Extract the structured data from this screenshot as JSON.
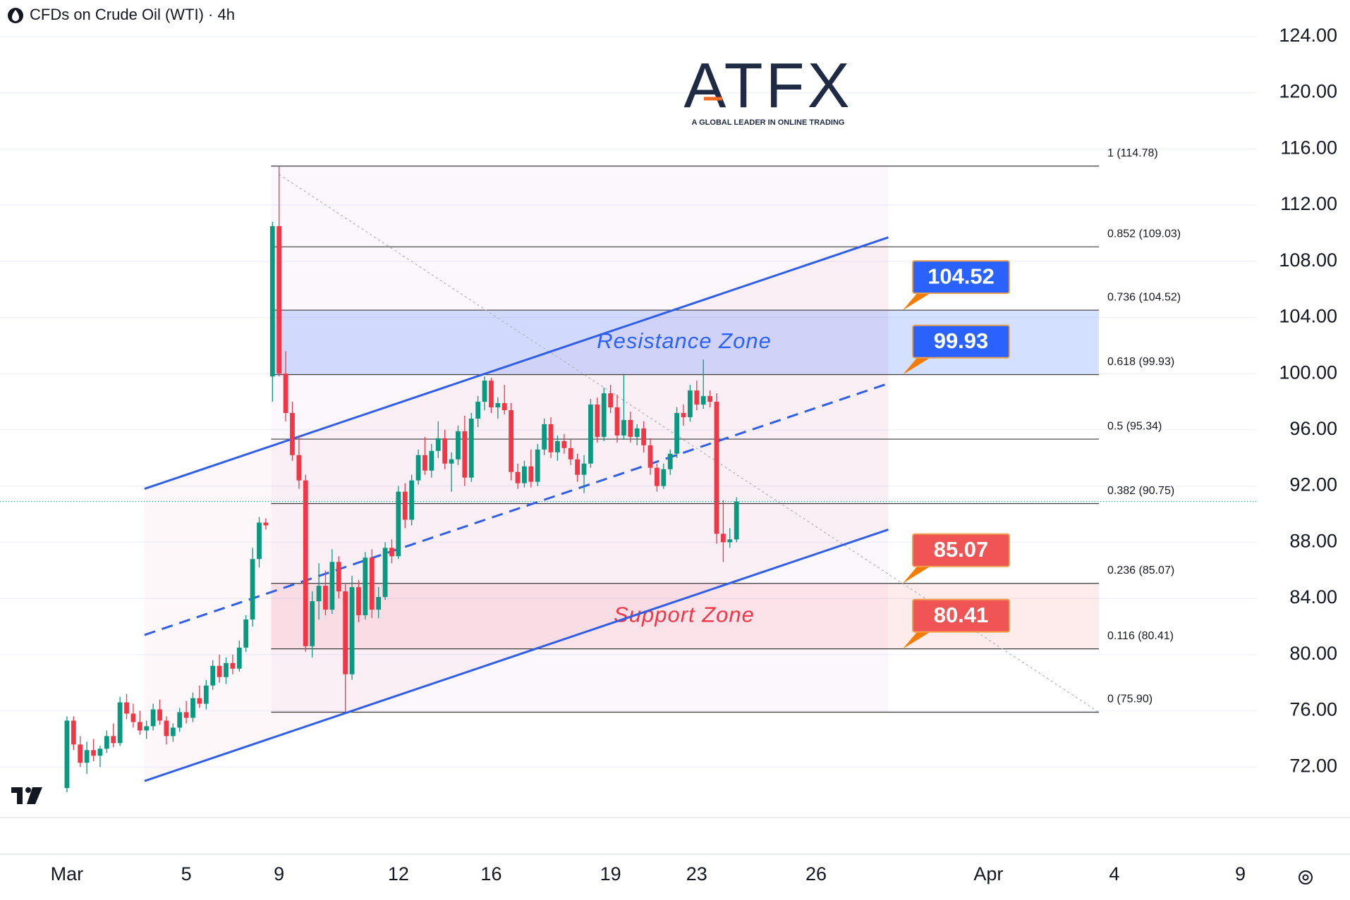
{
  "header": {
    "title": "CFDs on Crude Oil (WTI) · 4h"
  },
  "logo": {
    "brand": "ATFX",
    "tagline": "A GLOBAL LEADER IN ONLINE TRADING"
  },
  "chart_data": {
    "type": "candlestick",
    "up_color": "#089981",
    "down_color": "#f23645",
    "open": [
      70.5,
      75.3,
      73.6,
      72.3,
      73.2,
      72.8,
      73.3,
      74.2,
      73.7,
      76.6,
      75.8,
      75.2,
      74.6,
      74.9,
      76.1,
      75.3,
      74.2,
      74.8,
      75.9,
      75.5,
      76.9,
      76.5,
      77.8,
      79.2,
      78.4,
      79.4,
      79.0,
      80.5,
      82.5,
      86.8,
      89.4,
      99.8,
      110.5,
      100.0,
      97.2,
      94.2,
      92.4,
      80.6,
      83.8,
      84.9,
      83.2,
      86.6,
      84.5,
      78.6,
      84.8,
      82.8,
      86.9,
      83.2,
      84.1,
      87.6,
      87.0,
      91.6,
      89.6,
      92.4,
      94.2,
      93.1,
      94.5,
      95.4,
      93.6,
      93.9,
      95.9,
      92.6,
      96.8,
      98.0,
      99.5,
      97.6,
      97.9,
      97.4,
      93.0,
      92.2,
      93.4,
      92.3,
      94.6,
      96.4,
      94.4,
      95.2,
      94.7,
      93.9,
      92.8,
      93.6,
      97.8,
      95.5,
      98.6,
      97.6,
      95.6,
      96.7,
      95.5,
      96.1,
      94.9,
      93.3,
      92.0,
      93.2,
      94.3,
      97.2,
      96.9,
      98.8,
      97.8,
      98.4,
      98.0,
      88.6,
      88.0,
      88.2
    ],
    "high": [
      75.6,
      75.6,
      74.2,
      73.8,
      74.0,
      73.5,
      74.6,
      75.1,
      77.0,
      77.2,
      76.5,
      76.0,
      75.3,
      76.5,
      76.8,
      75.6,
      75.1,
      76.2,
      76.7,
      77.3,
      77.8,
      78.2,
      79.6,
      80.0,
      79.8,
      80.0,
      81.0,
      82.8,
      87.6,
      89.8,
      89.7,
      110.8,
      114.78,
      101.6,
      98.0,
      95.6,
      92.8,
      84.5,
      86.5,
      86.0,
      87.5,
      87.0,
      85.0,
      85.6,
      85.3,
      87.3,
      87.5,
      84.8,
      88.0,
      88.2,
      92.0,
      92.2,
      92.8,
      94.6,
      95.5,
      95.0,
      96.6,
      96.0,
      94.4,
      96.3,
      97.0,
      97.2,
      98.4,
      99.8,
      99.7,
      98.3,
      99.2,
      97.9,
      93.6,
      93.8,
      94.6,
      95.0,
      96.8,
      96.9,
      95.6,
      95.7,
      95.3,
      94.3,
      94.2,
      98.2,
      98.3,
      99.0,
      99.2,
      98.5,
      99.9,
      97.3,
      96.4,
      96.6,
      95.4,
      93.6,
      93.6,
      94.6,
      97.6,
      97.8,
      99.2,
      99.5,
      101.0,
      98.8,
      98.6,
      91.0,
      89.0,
      91.2
    ],
    "low": [
      70.2,
      73.2,
      72.0,
      71.5,
      72.4,
      72.0,
      73.0,
      73.4,
      73.5,
      75.4,
      74.8,
      74.3,
      74.0,
      74.6,
      75.0,
      73.6,
      73.8,
      74.5,
      75.1,
      75.2,
      76.2,
      76.1,
      77.5,
      78.0,
      77.9,
      78.6,
      78.8,
      80.2,
      82.0,
      86.2,
      88.9,
      98.0,
      99.8,
      96.6,
      93.8,
      91.8,
      80.2,
      79.8,
      82.5,
      82.8,
      82.9,
      84.0,
      75.9,
      78.2,
      82.3,
      82.5,
      82.6,
      82.6,
      83.9,
      86.5,
      86.8,
      89.0,
      89.2,
      92.1,
      92.8,
      92.6,
      94.0,
      93.2,
      91.6,
      93.5,
      92.0,
      92.3,
      96.2,
      97.4,
      97.2,
      96.8,
      97.1,
      92.4,
      91.8,
      91.9,
      91.9,
      92.0,
      94.2,
      94.0,
      93.8,
      94.3,
      93.5,
      92.3,
      91.5,
      93.3,
      95.1,
      95.2,
      97.2,
      95.1,
      95.3,
      95.1,
      94.9,
      94.4,
      92.8,
      91.6,
      91.8,
      92.8,
      94.0,
      96.3,
      96.6,
      97.4,
      97.5,
      97.6,
      87.9,
      86.6,
      87.6,
      88.0
    ],
    "close": [
      75.3,
      73.6,
      72.3,
      73.2,
      72.8,
      73.3,
      74.2,
      73.7,
      76.6,
      75.8,
      75.2,
      74.6,
      74.9,
      76.1,
      75.3,
      74.2,
      74.8,
      75.9,
      75.5,
      76.9,
      76.5,
      77.8,
      79.2,
      78.4,
      79.4,
      79.0,
      80.5,
      82.5,
      86.8,
      89.4,
      89.2,
      110.5,
      100.0,
      97.2,
      94.2,
      92.4,
      80.6,
      83.8,
      84.9,
      83.2,
      86.6,
      84.5,
      78.6,
      84.8,
      82.8,
      86.9,
      83.2,
      84.1,
      87.6,
      87.0,
      91.6,
      89.6,
      92.4,
      94.2,
      93.1,
      94.5,
      95.4,
      93.6,
      93.9,
      95.9,
      92.6,
      96.8,
      98.0,
      99.5,
      97.6,
      97.9,
      97.4,
      93.0,
      92.2,
      93.4,
      92.3,
      94.6,
      96.4,
      94.4,
      95.2,
      94.7,
      93.9,
      92.8,
      93.6,
      97.8,
      95.5,
      98.6,
      97.6,
      95.6,
      96.7,
      95.5,
      96.1,
      94.9,
      93.3,
      92.0,
      93.2,
      94.3,
      97.2,
      96.9,
      98.8,
      97.8,
      98.4,
      98.0,
      88.6,
      88.0,
      88.2,
      90.9
    ],
    "xlim": [
      -10.1,
      179.5
    ],
    "xticks": [
      {
        "value": 0,
        "label": "Mar"
      },
      {
        "value": 18,
        "label": "5"
      },
      {
        "value": 32,
        "label": "9"
      },
      {
        "value": 50,
        "label": "12"
      },
      {
        "value": 64,
        "label": "16"
      },
      {
        "value": 82,
        "label": "19"
      },
      {
        "value": 95,
        "label": "23"
      },
      {
        "value": 113,
        "label": "26"
      },
      {
        "value": 139,
        "label": "Apr"
      },
      {
        "value": 158,
        "label": "4"
      },
      {
        "value": 177,
        "label": "9"
      }
    ],
    "ylim": [
      68.4,
      126.6
    ],
    "yticks": [
      {
        "value": 72,
        "label": "72.00"
      },
      {
        "value": 76,
        "label": "76.00"
      },
      {
        "value": 80,
        "label": "80.00"
      },
      {
        "value": 84,
        "label": "84.00"
      },
      {
        "value": 88,
        "label": "88.00"
      },
      {
        "value": 92,
        "label": "92.00"
      },
      {
        "value": 96,
        "label": "96.00"
      },
      {
        "value": 100,
        "label": "100.00"
      },
      {
        "value": 104,
        "label": "104.00"
      },
      {
        "value": 108,
        "label": "108.00"
      },
      {
        "value": 112,
        "label": "112.00"
      },
      {
        "value": 116,
        "label": "116.00"
      },
      {
        "value": 120,
        "label": "120.00"
      },
      {
        "value": 124,
        "label": "124.00"
      }
    ],
    "grid": true,
    "fib_levels": [
      {
        "ratio": 1,
        "price": 114.78,
        "label": "1 (114.78)"
      },
      {
        "ratio": 0.852,
        "price": 109.03,
        "label": "0.852 (109.03)"
      },
      {
        "ratio": 0.736,
        "price": 104.52,
        "label": "0.736 (104.52)"
      },
      {
        "ratio": 0.618,
        "price": 99.93,
        "label": "0.618 (99.93)"
      },
      {
        "ratio": 0.5,
        "price": 95.34,
        "label": "0.5 (95.34)"
      },
      {
        "ratio": 0.382,
        "price": 90.75,
        "label": "0.382 (90.75)"
      },
      {
        "ratio": 0.236,
        "price": 85.07,
        "label": "0.236 (85.07)"
      },
      {
        "ratio": 0.116,
        "price": 80.41,
        "label": "0.116 (80.41)"
      },
      {
        "ratio": 0,
        "price": 75.9,
        "label": "0 (75.90)"
      }
    ],
    "zones": [
      {
        "name": "Resistance Zone",
        "from": 99.93,
        "to": 104.52,
        "color": "#2962ff"
      },
      {
        "name": "Support Zone",
        "from": 80.41,
        "to": 85.07,
        "color": "#f23645"
      }
    ],
    "callouts": [
      {
        "value": 104.52,
        "color": "#2962ff"
      },
      {
        "value": 99.93,
        "color": "#2962ff"
      },
      {
        "value": 85.07,
        "color": "#f05454"
      },
      {
        "value": 80.41,
        "color": "#f05454"
      }
    ],
    "channel": {
      "upper": [
        91.8,
        109.7
      ],
      "lower": [
        71.0,
        88.9
      ],
      "color": "#2f5fe6"
    }
  }
}
